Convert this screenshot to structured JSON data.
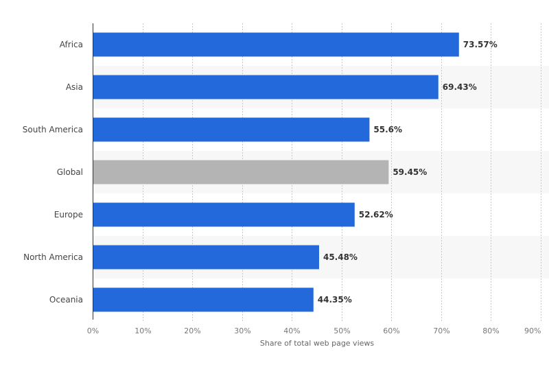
{
  "chart_data": {
    "type": "bar",
    "orientation": "horizontal",
    "categories": [
      "Africa",
      "Asia",
      "South America",
      "Global",
      "Europe",
      "North America",
      "Oceania"
    ],
    "values": [
      73.57,
      69.43,
      55.6,
      59.45,
      52.62,
      45.48,
      44.35
    ],
    "data_labels": [
      "73.57%",
      "69.43%",
      "55.6%",
      "59.45%",
      "52.62%",
      "45.48%",
      "44.35%"
    ],
    "highlight_category": "Global",
    "xlabel": "Share of total web page views",
    "ylabel": "",
    "xlim": [
      0,
      90
    ],
    "ticks": [
      0,
      10,
      20,
      30,
      40,
      50,
      60,
      70,
      80,
      90
    ],
    "tick_labels": [
      "0%",
      "10%",
      "20%",
      "30%",
      "40%",
      "50%",
      "60%",
      "70%",
      "80%",
      "90%"
    ],
    "grid": true,
    "colors": {
      "bar": "#2369db",
      "highlight": "#b4b4b4",
      "band": "#f7f7f7",
      "grid": "#c8c8c8"
    }
  }
}
